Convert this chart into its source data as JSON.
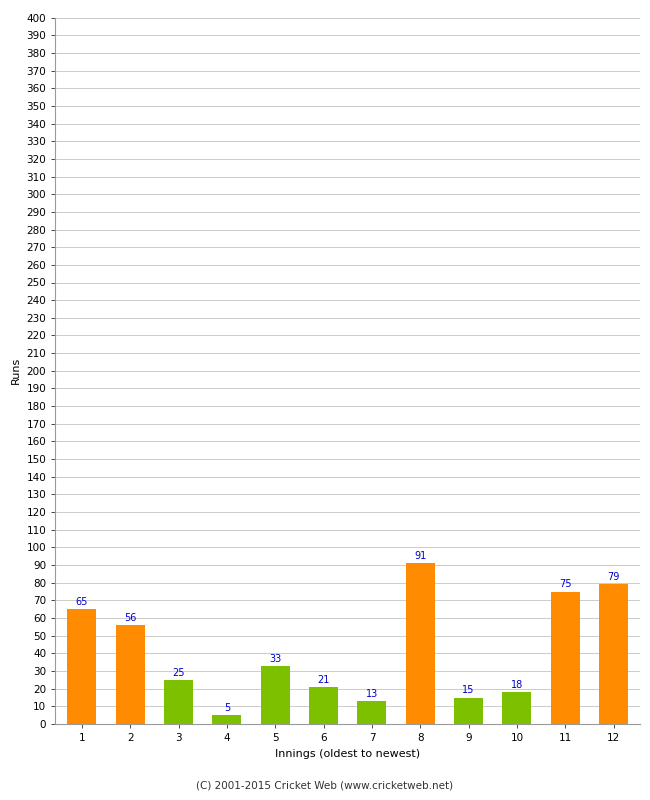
{
  "categories": [
    "1",
    "2",
    "3",
    "4",
    "5",
    "6",
    "7",
    "8",
    "9",
    "10",
    "11",
    "12"
  ],
  "values": [
    65,
    56,
    25,
    5,
    33,
    21,
    13,
    91,
    15,
    18,
    75,
    79
  ],
  "bar_colors": [
    "#ff8c00",
    "#ff8c00",
    "#7dc000",
    "#7dc000",
    "#7dc000",
    "#7dc000",
    "#7dc000",
    "#ff8c00",
    "#7dc000",
    "#7dc000",
    "#ff8c00",
    "#ff8c00"
  ],
  "xlabel": "Innings (oldest to newest)",
  "ylabel": "Runs",
  "ylim": [
    0,
    400
  ],
  "ytick_step": 10,
  "label_color": "#0000cc",
  "label_fontsize": 7,
  "tick_fontsize": 7.5,
  "xlabel_fontsize": 8,
  "ylabel_fontsize": 8,
  "background_color": "#ffffff",
  "grid_color": "#cccccc",
  "footer": "(C) 2001-2015 Cricket Web (www.cricketweb.net)"
}
